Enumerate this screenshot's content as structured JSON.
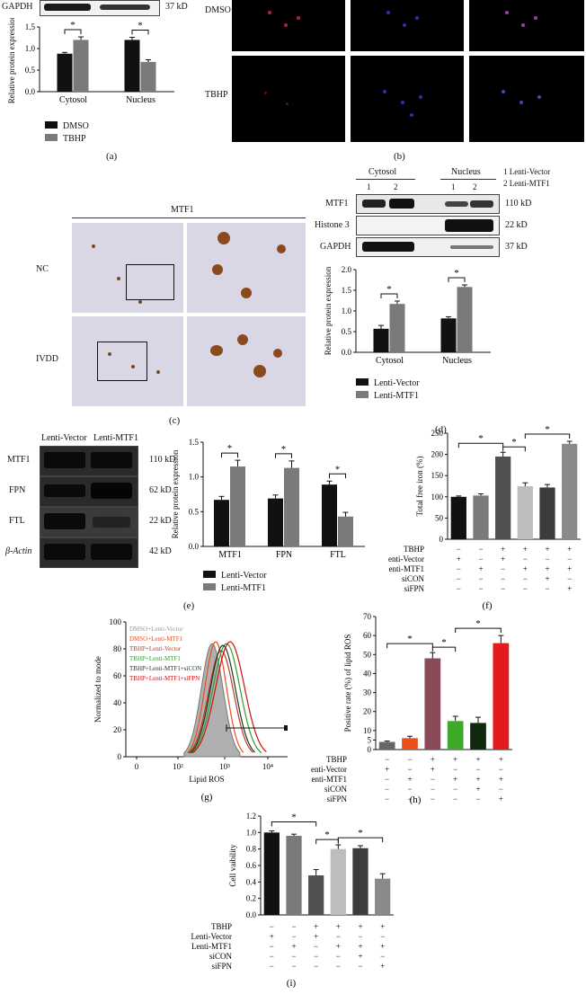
{
  "panel_labels": {
    "a": "(a)",
    "b": "(b)",
    "c": "(c)",
    "d": "(d)",
    "e": "(e)",
    "f": "(f)",
    "g": "(g)",
    "h": "(h)",
    "i": "(i)"
  },
  "panel_a": {
    "blot": {
      "label": "GAPDH",
      "kd": "37 kD"
    },
    "legend": [
      "DMSO",
      "TBHP"
    ]
  },
  "panel_b": {
    "rows": [
      "DMSO",
      "TBHP"
    ]
  },
  "panel_c": {
    "title": "MTF1",
    "rows": [
      "NC",
      "IVDD"
    ]
  },
  "panel_d": {
    "groups": [
      "Cytosol",
      "Nucleus"
    ],
    "lanes": [
      "1",
      "2",
      "1",
      "2"
    ],
    "key": [
      "1 Lenti-Vector",
      "2 Lenti-MTF1"
    ],
    "blots": [
      {
        "label": "MTF1",
        "kd": "110 kD"
      },
      {
        "label": "Histone 3",
        "kd": "22 kD"
      },
      {
        "label": "GAPDH",
        "kd": "37 kD"
      }
    ],
    "legend": [
      "Lenti-Vector",
      "Lenti-MTF1"
    ]
  },
  "panel_e": {
    "lanes": [
      "Lenti-Vector",
      "Lenti-MTF1"
    ],
    "blots": [
      {
        "label": "MTF1",
        "kd": "110 kD"
      },
      {
        "label": "FPN",
        "kd": "62 kD"
      },
      {
        "label": "FTL",
        "kd": "22 kD"
      },
      {
        "label": "β-Actin",
        "kd": "42 kD"
      }
    ],
    "legend": [
      "Lenti-Vector",
      "Lenti-MTF1"
    ]
  },
  "conditions": {
    "rows": [
      "TBHP",
      "Lenti-Vector",
      "Lenti-MTF1",
      "siCON",
      "siFPN"
    ],
    "signs": [
      [
        "−",
        "−",
        "+",
        "+",
        "+",
        "+"
      ],
      [
        "+",
        "−",
        "+",
        "−",
        "−",
        "−"
      ],
      [
        "−",
        "+",
        "−",
        "+",
        "+",
        "+"
      ],
      [
        "−",
        "−",
        "−",
        "−",
        "+",
        "−"
      ],
      [
        "−",
        "−",
        "−",
        "−",
        "−",
        "+"
      ]
    ]
  },
  "panel_g": {
    "ylabel": "Normalized to mode",
    "xlabel": "Lipid ROS",
    "yticks": [
      "0",
      "20",
      "40",
      "60",
      "80",
      "100"
    ],
    "xticks": [
      "0",
      "10²",
      "10³",
      "10⁴"
    ],
    "legend": [
      {
        "text": "DMSO+Lenti-Vector",
        "color": "#9a9a9a"
      },
      {
        "text": "DMSO+Lenti-MTF1",
        "color": "#e8501e"
      },
      {
        "text": "TBHP+Lenti-Vector",
        "color": "#c0392b"
      },
      {
        "text": "TBHP+Lenti-MTF1",
        "color": "#2e9e2e"
      },
      {
        "text": "TBHP+Lenti-MTF1+siCON",
        "color": "#1a3a1a"
      },
      {
        "text": "TBHP+Lenti-MTF1+siFPN",
        "color": "#d01010"
      }
    ]
  },
  "chart_data": [
    {
      "type": "bar",
      "id": "a",
      "categories": [
        "Cytosol",
        "Nucleus"
      ],
      "ylabel": "Relative protein expression",
      "ylim": [
        0,
        1.5
      ],
      "yticks": [
        "0.0",
        "0.5",
        "1.0",
        "1.5"
      ],
      "series": [
        {
          "name": "DMSO",
          "values": [
            0.88,
            1.2
          ],
          "errors": [
            0.03,
            0.06
          ],
          "color": "#111111"
        },
        {
          "name": "TBHP",
          "values": [
            1.2,
            0.69
          ],
          "errors": [
            0.07,
            0.05
          ],
          "color": "#7a7a7a"
        }
      ]
    },
    {
      "type": "bar",
      "id": "d",
      "categories": [
        "Cytosol",
        "Nucleus"
      ],
      "ylabel": "Relative protein expression",
      "ylim": [
        0,
        2.0
      ],
      "yticks": [
        "0.0",
        "0.5",
        "1.0",
        "1.5",
        "2.0"
      ],
      "series": [
        {
          "name": "Lenti-Vector",
          "values": [
            0.57,
            0.82
          ],
          "errors": [
            0.08,
            0.04
          ],
          "color": "#111111"
        },
        {
          "name": "Lenti-MTF1",
          "values": [
            1.17,
            1.58
          ],
          "errors": [
            0.07,
            0.05
          ],
          "color": "#7a7a7a"
        }
      ]
    },
    {
      "type": "bar",
      "id": "e",
      "categories": [
        "MTF1",
        "FPN",
        "FTL"
      ],
      "ylabel": "Relative protein expression",
      "ylim": [
        0,
        1.5
      ],
      "yticks": [
        "0.0",
        "0.5",
        "1.0",
        "1.5"
      ],
      "series": [
        {
          "name": "Lenti-Vector",
          "values": [
            0.67,
            0.69,
            0.89
          ],
          "errors": [
            0.05,
            0.05,
            0.05
          ],
          "color": "#111111"
        },
        {
          "name": "Lenti-MTF1",
          "values": [
            1.15,
            1.13,
            0.43
          ],
          "errors": [
            0.09,
            0.1,
            0.06
          ],
          "color": "#7a7a7a"
        }
      ]
    },
    {
      "type": "bar",
      "id": "f",
      "ylabel": "Total free iron (%)",
      "ylim": [
        0,
        250
      ],
      "yticks": [
        "0",
        "50",
        "100",
        "150",
        "200",
        "250"
      ],
      "values": [
        100,
        103,
        195,
        125,
        122,
        225
      ],
      "errors": [
        2,
        4,
        10,
        8,
        7,
        6
      ],
      "colors": [
        "#111111",
        "#7a7a7a",
        "#505050",
        "#bdbdbd",
        "#3c3c3c",
        "#8a8a8a"
      ]
    },
    {
      "type": "bar",
      "id": "h",
      "ylabel": "Positive rate (%) of lipid ROS",
      "ylim": [
        0,
        70
      ],
      "yticks": [
        "0",
        "5",
        "10",
        "20",
        "30",
        "40",
        "50",
        "60",
        "70"
      ],
      "values": [
        4,
        6,
        48,
        15,
        14,
        56
      ],
      "errors": [
        0.5,
        1,
        3,
        2.5,
        3,
        4
      ],
      "colors": [
        "#666666",
        "#e8501e",
        "#8b4a5a",
        "#3fa92a",
        "#0f2a0f",
        "#e41a1c"
      ]
    },
    {
      "type": "bar",
      "id": "i",
      "ylabel": "Cell vaibility",
      "ylim": [
        0,
        1.2
      ],
      "yticks": [
        "0.0",
        "0.2",
        "0.4",
        "0.6",
        "0.8",
        "1.0",
        "1.2"
      ],
      "values": [
        1.0,
        0.96,
        0.48,
        0.8,
        0.81,
        0.44
      ],
      "errors": [
        0.02,
        0.02,
        0.07,
        0.05,
        0.03,
        0.06
      ],
      "colors": [
        "#111111",
        "#7a7a7a",
        "#505050",
        "#bdbdbd",
        "#3c3c3c",
        "#8a8a8a"
      ]
    }
  ]
}
